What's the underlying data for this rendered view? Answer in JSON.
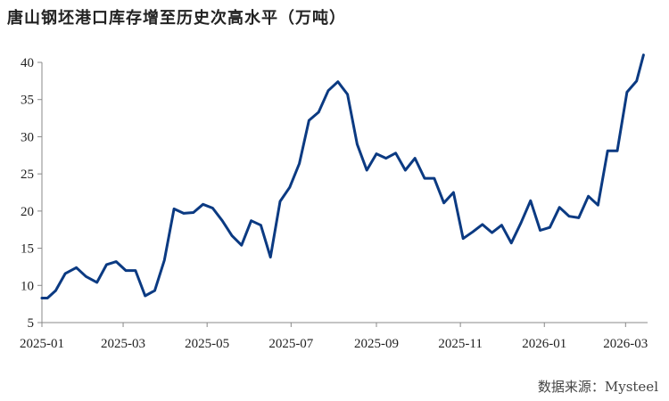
{
  "title": "唐山钢坯港口库存增至历史次高水平（万吨）",
  "source": "数据来源：Mysteel",
  "chart_data": {
    "type": "line",
    "title": "唐山钢坯港口库存增至历史次高水平（万吨）",
    "xlabel": "",
    "ylabel": "",
    "ylim": [
      5,
      40
    ],
    "yticks": [
      5,
      10,
      15,
      20,
      25,
      30,
      35,
      40
    ],
    "xticks": [
      "2025-01",
      "2025-03",
      "2025-05",
      "2025-07",
      "2025-09",
      "2025-11",
      "2026-01",
      "2026-03"
    ],
    "grid": false,
    "series_color": "#0b3a82",
    "series": [
      {
        "x": [
          "2025-01-01",
          "2025-01-05",
          "2025-01-11",
          "2025-01-18",
          "2025-01-26",
          "2025-02-02",
          "2025-02-10",
          "2025-02-17",
          "2025-02-24",
          "2025-03-03",
          "2025-03-10",
          "2025-03-17",
          "2025-03-24",
          "2025-03-31",
          "2025-04-07",
          "2025-04-14",
          "2025-04-21",
          "2025-04-28",
          "2025-05-05",
          "2025-05-12",
          "2025-05-19",
          "2025-05-26",
          "2025-06-02",
          "2025-06-09",
          "2025-06-16",
          "2025-06-23",
          "2025-06-30",
          "2025-07-07",
          "2025-07-14",
          "2025-07-21",
          "2025-07-28",
          "2025-08-04",
          "2025-08-11",
          "2025-08-18",
          "2025-08-25",
          "2025-09-01",
          "2025-09-08",
          "2025-09-15",
          "2025-09-22",
          "2025-09-29",
          "2025-10-06",
          "2025-10-13",
          "2025-10-20",
          "2025-10-27",
          "2025-11-03",
          "2025-11-10",
          "2025-11-17",
          "2025-11-24",
          "2025-12-01",
          "2025-12-08",
          "2025-12-15",
          "2025-12-22",
          "2025-12-29",
          "2026-01-05",
          "2026-01-12",
          "2026-01-19",
          "2026-01-26",
          "2026-02-02",
          "2026-02-09",
          "2026-02-16",
          "2026-02-23",
          "2026-03-02",
          "2026-03-09",
          "2026-03-14"
        ],
        "y": [
          8.3,
          8.3,
          9.3,
          11.6,
          12.4,
          11.2,
          10.4,
          12.8,
          13.2,
          12.0,
          12.0,
          8.6,
          9.3,
          13.4,
          20.3,
          19.7,
          19.8,
          20.9,
          20.4,
          18.7,
          16.7,
          15.4,
          18.7,
          18.1,
          13.8,
          21.3,
          23.2,
          26.4,
          32.2,
          33.3,
          36.2,
          37.4,
          35.7,
          29.0,
          25.5,
          27.7,
          27.1,
          27.8,
          25.5,
          27.1,
          24.4,
          24.4,
          21.1,
          22.5,
          16.3,
          17.2,
          18.2,
          17.1,
          18.1,
          15.7,
          18.4,
          21.4,
          17.4,
          17.8,
          20.5,
          19.3,
          19.1,
          22.0,
          20.8,
          28.1,
          28.1,
          36.0,
          37.5,
          41.0
        ]
      }
    ]
  }
}
